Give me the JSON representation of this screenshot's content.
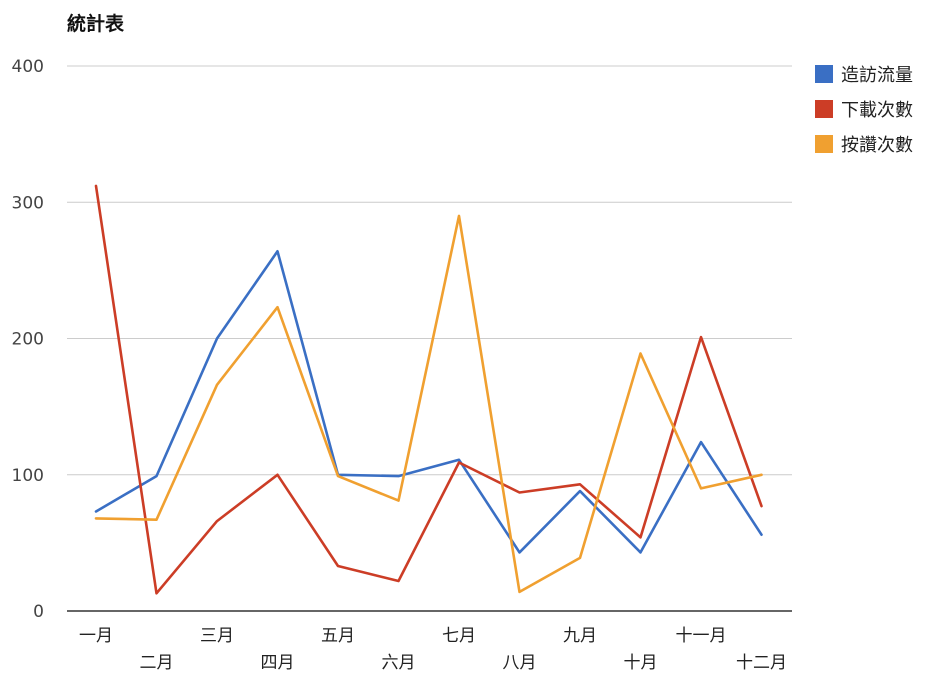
{
  "chart_data": {
    "type": "line",
    "title": "統計表",
    "xlabel": "",
    "ylabel": "",
    "categories": [
      "一月",
      "二月",
      "三月",
      "四月",
      "五月",
      "六月",
      "七月",
      "八月",
      "九月",
      "十月",
      "十一月",
      "十二月"
    ],
    "ylim": [
      0,
      400
    ],
    "yticks": [
      0,
      100,
      200,
      300,
      400
    ],
    "grid": true,
    "legend_position": "right-top",
    "series": [
      {
        "name": "造訪流量",
        "color": "#3a6fc4",
        "values": [
          73,
          99,
          200,
          264,
          100,
          99,
          111,
          43,
          88,
          43,
          124,
          56
        ]
      },
      {
        "name": "下載次數",
        "color": "#cc3d26",
        "values": [
          312,
          13,
          66,
          100,
          33,
          22,
          109,
          87,
          93,
          54,
          201,
          77
        ]
      },
      {
        "name": "按讚次數",
        "color": "#f0a030",
        "values": [
          68,
          67,
          166,
          223,
          99,
          81,
          290,
          14,
          39,
          189,
          90,
          100
        ]
      }
    ]
  }
}
